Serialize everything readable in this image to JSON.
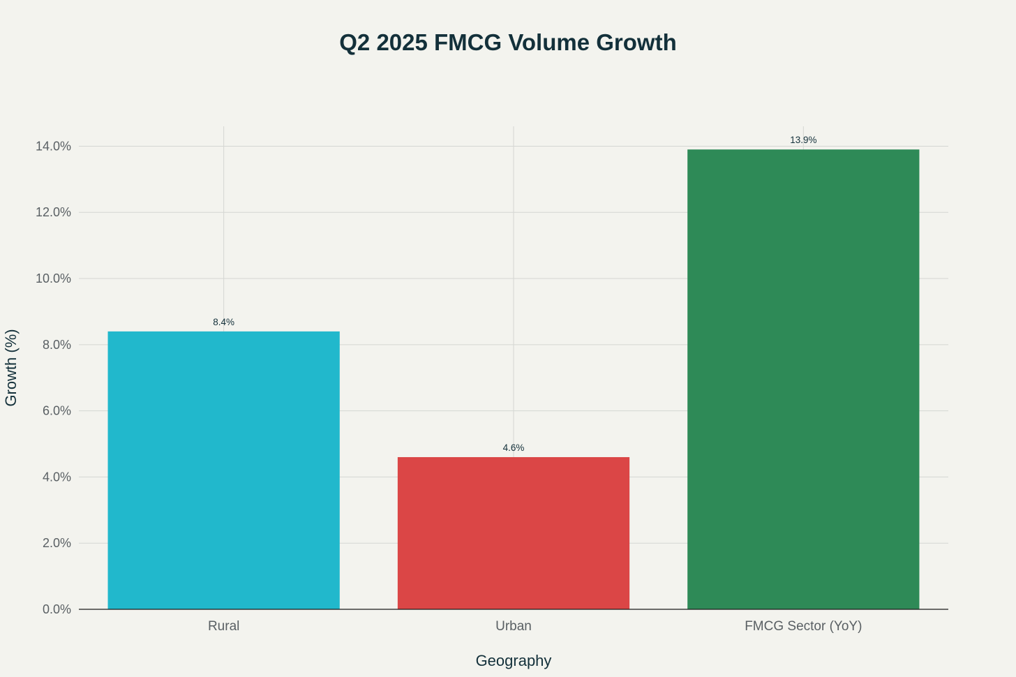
{
  "chart_data": {
    "type": "bar",
    "title": "Q2 2025 FMCG Volume Growth",
    "xlabel": "Geography",
    "ylabel": "Growth (%)",
    "categories": [
      "Rural",
      "Urban",
      "FMCG Sector (YoY)"
    ],
    "values": [
      8.4,
      4.6,
      13.9
    ],
    "data_labels": [
      "8.4%",
      "4.6%",
      "13.9%"
    ],
    "colors": [
      "#21b8cc",
      "#db4646",
      "#2e8a57"
    ],
    "ylim": [
      0,
      14.6
    ],
    "yticks": [
      0,
      2,
      4,
      6,
      8,
      10,
      12,
      14
    ],
    "ytick_labels": [
      "0.0%",
      "2.0%",
      "4.0%",
      "6.0%",
      "8.0%",
      "10.0%",
      "12.0%",
      "14.0%"
    ],
    "grid": true,
    "legend": "none"
  }
}
